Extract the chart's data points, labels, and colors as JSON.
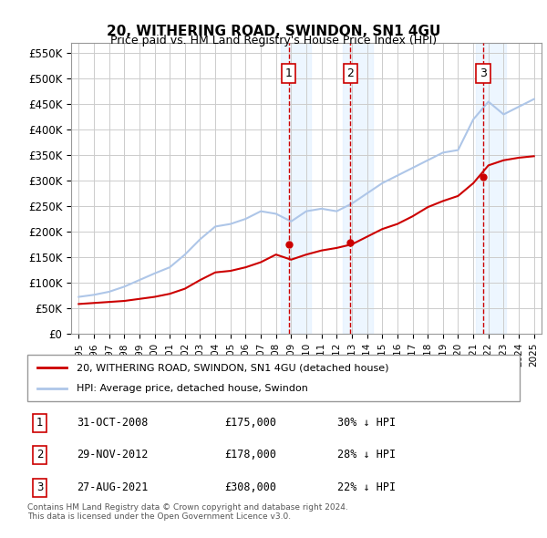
{
  "title": "20, WITHERING ROAD, SWINDON, SN1 4GU",
  "subtitle": "Price paid vs. HM Land Registry's House Price Index (HPI)",
  "xlabel": "",
  "ylabel": "",
  "ylim": [
    0,
    570000
  ],
  "yticks": [
    0,
    50000,
    100000,
    150000,
    200000,
    250000,
    300000,
    350000,
    400000,
    450000,
    500000,
    550000
  ],
  "ytick_labels": [
    "£0",
    "£50K",
    "£100K",
    "£150K",
    "£200K",
    "£250K",
    "£300K",
    "£350K",
    "£400K",
    "£450K",
    "£500K",
    "£550K"
  ],
  "background_color": "#ffffff",
  "plot_bg_color": "#ffffff",
  "grid_color": "#cccccc",
  "hpi_color": "#aec6e8",
  "price_color": "#cc0000",
  "transaction_marker_color": "#cc0000",
  "transactions": [
    {
      "date": 2008.83,
      "price": 175000,
      "label": "1"
    },
    {
      "date": 2012.91,
      "price": 178000,
      "label": "2"
    },
    {
      "date": 2021.65,
      "price": 308000,
      "label": "3"
    }
  ],
  "transaction_vline_color": "#cc0000",
  "transaction_band_color": "#ddeeff",
  "legend_entries": [
    "20, WITHERING ROAD, SWINDON, SN1 4GU (detached house)",
    "HPI: Average price, detached house, Swindon"
  ],
  "table_rows": [
    {
      "num": "1",
      "date": "31-OCT-2008",
      "price": "£175,000",
      "pct": "30% ↓ HPI"
    },
    {
      "num": "2",
      "date": "29-NOV-2012",
      "price": "£178,000",
      "pct": "28% ↓ HPI"
    },
    {
      "num": "3",
      "date": "27-AUG-2021",
      "price": "£308,000",
      "pct": "22% ↓ HPI"
    }
  ],
  "footer": "Contains HM Land Registry data © Crown copyright and database right 2024.\nThis data is licensed under the Open Government Licence v3.0.",
  "hpi_data": {
    "years": [
      1995,
      1996,
      1997,
      1998,
      1999,
      2000,
      2001,
      2002,
      2003,
      2004,
      2005,
      2006,
      2007,
      2008,
      2009,
      2010,
      2011,
      2012,
      2013,
      2014,
      2015,
      2016,
      2017,
      2018,
      2019,
      2020,
      2021,
      2022,
      2023,
      2024,
      2025
    ],
    "values": [
      72000,
      76000,
      82000,
      92000,
      105000,
      118000,
      130000,
      155000,
      185000,
      210000,
      215000,
      225000,
      240000,
      235000,
      220000,
      240000,
      245000,
      240000,
      255000,
      275000,
      295000,
      310000,
      325000,
      340000,
      355000,
      360000,
      420000,
      455000,
      430000,
      445000,
      460000
    ]
  },
  "price_paid_data": {
    "years": [
      1995,
      1996,
      1997,
      1998,
      1999,
      2000,
      2001,
      2002,
      2003,
      2004,
      2005,
      2006,
      2007,
      2008,
      2009,
      2010,
      2011,
      2012,
      2013,
      2014,
      2015,
      2016,
      2017,
      2018,
      2019,
      2020,
      2021,
      2022,
      2023,
      2024,
      2025
    ],
    "values": [
      58000,
      60000,
      62000,
      64000,
      68000,
      72000,
      78000,
      88000,
      105000,
      120000,
      123000,
      130000,
      140000,
      155000,
      145000,
      155000,
      163000,
      168000,
      175000,
      190000,
      205000,
      215000,
      230000,
      248000,
      260000,
      270000,
      295000,
      330000,
      340000,
      345000,
      348000
    ]
  }
}
